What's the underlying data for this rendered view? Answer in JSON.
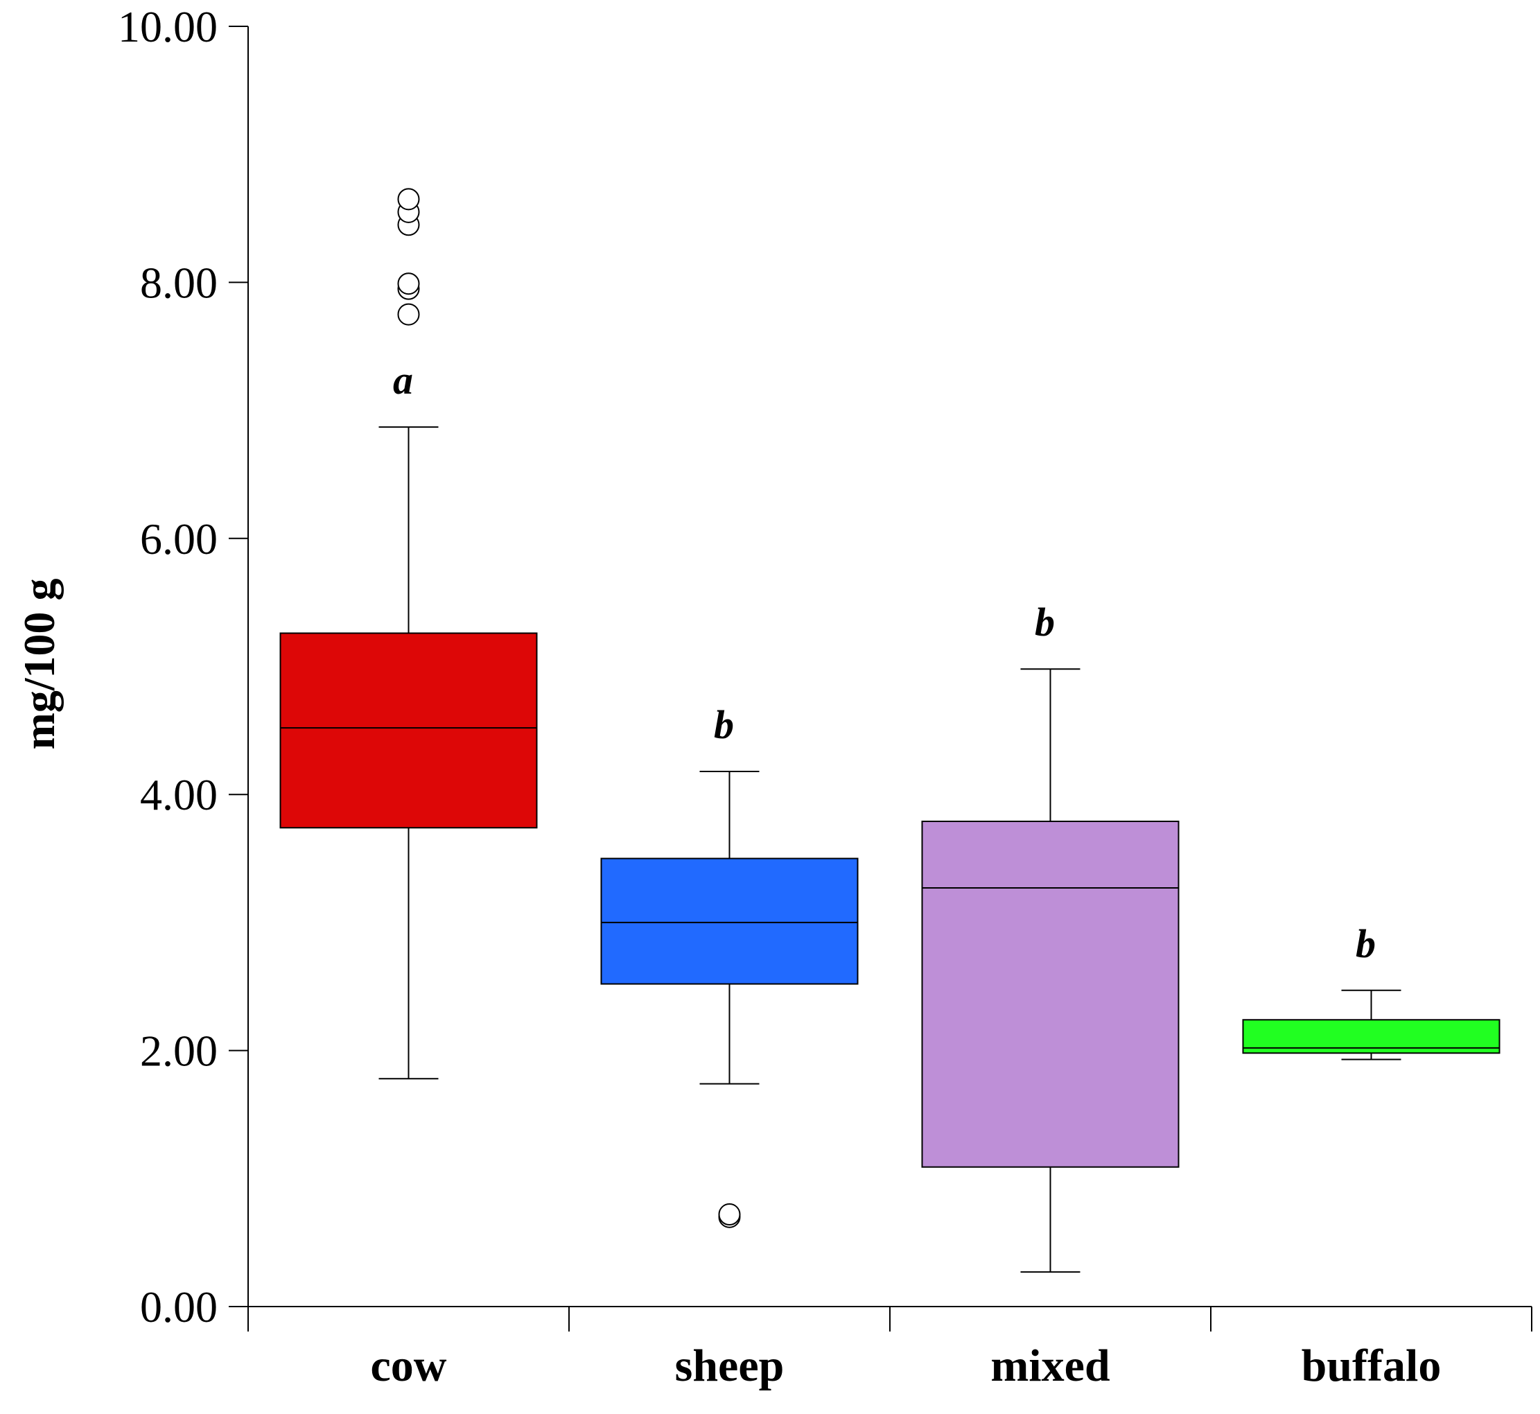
{
  "chart_data": {
    "type": "box",
    "title": "",
    "xlabel": "",
    "ylabel": "mg/100 g",
    "ylim": [
      0,
      10
    ],
    "yticks": [
      "0.00",
      "2.00",
      "4.00",
      "6.00",
      "8.00",
      "10.00"
    ],
    "ytick_values": [
      0,
      2,
      4,
      6,
      8,
      10
    ],
    "grid": false,
    "categories": [
      "cow",
      "sheep",
      "mixed",
      "buffalo"
    ],
    "groups": [
      {
        "name": "cow",
        "color": "#dd0707",
        "q1": 3.74,
        "median": 4.52,
        "q3": 5.26,
        "whisker_low": 1.78,
        "whisker_high": 6.87,
        "outliers": [
          7.75,
          7.95,
          7.99,
          8.45,
          8.55,
          8.65
        ],
        "letter": "a"
      },
      {
        "name": "sheep",
        "color": "#216aff",
        "q1": 2.52,
        "median": 3.0,
        "q3": 3.5,
        "whisker_low": 1.74,
        "whisker_high": 4.18,
        "outliers": [
          0.7,
          0.72
        ],
        "letter": "b"
      },
      {
        "name": "mixed",
        "color": "#be8fd7",
        "q1": 1.09,
        "median": 3.27,
        "q3": 3.79,
        "whisker_low": 0.27,
        "whisker_high": 4.98,
        "outliers": [],
        "letter": "b"
      },
      {
        "name": "buffalo",
        "color": "#21ff21",
        "q1": 1.98,
        "median": 2.02,
        "q3": 2.24,
        "whisker_low": 1.93,
        "whisker_high": 2.47,
        "outliers": [],
        "letter": "b"
      }
    ]
  }
}
